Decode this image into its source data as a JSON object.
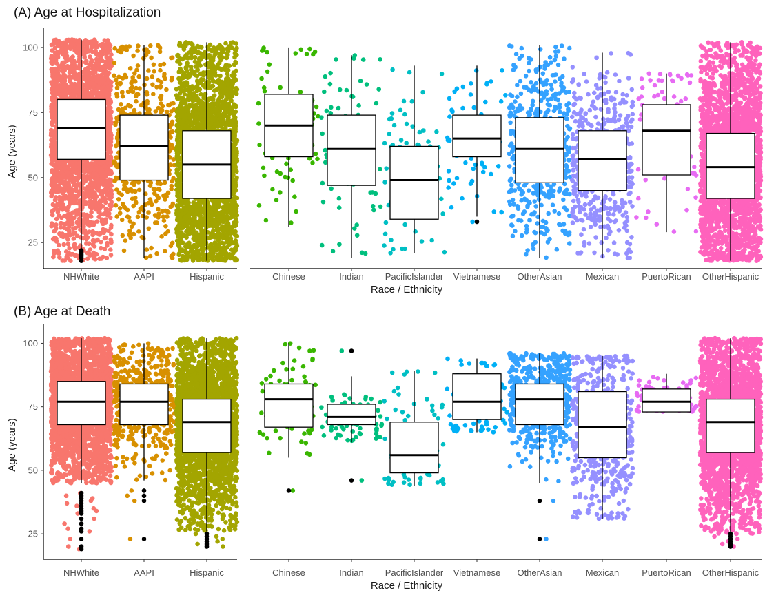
{
  "chart_data": [
    {
      "type": "boxplot",
      "title": "(A) Age at Hospitalization",
      "xlabel": "Race / Ethnicity",
      "ylabel": "Age (years)",
      "ylim": [
        15,
        105
      ],
      "yticks": [
        25,
        50,
        75,
        100
      ],
      "grid": false,
      "panels": [
        {
          "categories": [
            "NHWhite",
            "AAPI",
            "Hispanic"
          ]
        },
        {
          "categories": [
            "Chinese",
            "Indian",
            "PacificIslander",
            "Vietnamese",
            "OtherAsian",
            "Mexican",
            "PuertoRican",
            "OtherHispanic"
          ]
        }
      ],
      "series": [
        {
          "name": "NHWhite",
          "color": "#F8766D",
          "density": "dense",
          "min": 18,
          "q1": 57,
          "median": 69,
          "q3": 80,
          "max": 103,
          "outliers": [
            18,
            19,
            19.5,
            20,
            20.5,
            21,
            21.5,
            22
          ]
        },
        {
          "name": "AAPI",
          "color": "#D89000",
          "density": "medium",
          "min": 19,
          "q1": 49,
          "median": 62,
          "q3": 74,
          "max": 101,
          "outliers": []
        },
        {
          "name": "Hispanic",
          "color": "#A3A500",
          "density": "dense",
          "min": 18,
          "q1": 42,
          "median": 55,
          "q3": 68,
          "max": 102,
          "outliers": []
        },
        {
          "name": "Chinese",
          "color": "#39B600",
          "density": "sparse",
          "min": 31,
          "q1": 58,
          "median": 70,
          "q3": 82,
          "max": 100,
          "outliers": []
        },
        {
          "name": "Indian",
          "color": "#00BF7D",
          "density": "sparse",
          "min": 19,
          "q1": 47,
          "median": 61,
          "q3": 74,
          "max": 97,
          "outliers": []
        },
        {
          "name": "PacificIslander",
          "color": "#00BFC4",
          "density": "sparse",
          "min": 21,
          "q1": 34,
          "median": 49,
          "q3": 62,
          "max": 93,
          "outliers": []
        },
        {
          "name": "Vietnamese",
          "color": "#00B0F6",
          "density": "sparse",
          "min": 35,
          "q1": 58,
          "median": 65,
          "q3": 74,
          "max": 93,
          "outliers": [
            33
          ]
        },
        {
          "name": "OtherAsian",
          "color": "#35A2FF",
          "density": "medium",
          "min": 19,
          "q1": 48,
          "median": 61,
          "q3": 73,
          "max": 101,
          "outliers": []
        },
        {
          "name": "Mexican",
          "color": "#9590FF",
          "density": "medium",
          "min": 19,
          "q1": 45,
          "median": 57,
          "q3": 68,
          "max": 98,
          "outliers": []
        },
        {
          "name": "PuertoRican",
          "color": "#E76BF3",
          "density": "sparse",
          "min": 29,
          "q1": 51,
          "median": 68,
          "q3": 78,
          "max": 90,
          "outliers": []
        },
        {
          "name": "OtherHispanic",
          "color": "#FF62BC",
          "density": "dense",
          "min": 18,
          "q1": 42,
          "median": 54,
          "q3": 67,
          "max": 102,
          "outliers": []
        }
      ]
    },
    {
      "type": "boxplot",
      "title": "(B) Age at Death",
      "xlabel": "Race / Ethnicity",
      "ylabel": "Age (years)",
      "ylim": [
        15,
        105
      ],
      "yticks": [
        25,
        50,
        75,
        100
      ],
      "grid": false,
      "panels": [
        {
          "categories": [
            "NHWhite",
            "AAPI",
            "Hispanic"
          ]
        },
        {
          "categories": [
            "Chinese",
            "Indian",
            "PacificIslander",
            "Vietnamese",
            "OtherAsian",
            "Mexican",
            "PuertoRican",
            "OtherHispanic"
          ]
        }
      ],
      "series": [
        {
          "name": "NHWhite",
          "color": "#F8766D",
          "density": "dense",
          "min": 45,
          "q1": 68,
          "median": 77,
          "q3": 85,
          "max": 102,
          "outliers": [
            19,
            20,
            23,
            26,
            27,
            29,
            31,
            33,
            34,
            35,
            36,
            37,
            38,
            39,
            40,
            41
          ]
        },
        {
          "name": "AAPI",
          "color": "#D89000",
          "density": "medium",
          "min": 46,
          "q1": 68,
          "median": 77,
          "q3": 84,
          "max": 100,
          "outliers": [
            23,
            38,
            40,
            42
          ]
        },
        {
          "name": "Hispanic",
          "color": "#A3A500",
          "density": "dense",
          "min": 26,
          "q1": 57,
          "median": 69,
          "q3": 78,
          "max": 102,
          "outliers": [
            20,
            21,
            22,
            23,
            24,
            25
          ]
        },
        {
          "name": "Chinese",
          "color": "#39B600",
          "density": "sparse",
          "min": 55,
          "q1": 67,
          "median": 78,
          "q3": 84,
          "max": 100,
          "outliers": [
            42
          ]
        },
        {
          "name": "Indian",
          "color": "#00BF7D",
          "density": "sparse",
          "min": 61,
          "q1": 68,
          "median": 71,
          "q3": 76,
          "max": 87,
          "outliers": [
            46,
            97
          ]
        },
        {
          "name": "PacificIslander",
          "color": "#00BFC4",
          "density": "sparse",
          "min": 44,
          "q1": 49,
          "median": 56,
          "q3": 69,
          "max": 89,
          "outliers": []
        },
        {
          "name": "Vietnamese",
          "color": "#00B0F6",
          "density": "sparse",
          "min": 65,
          "q1": 70,
          "median": 77,
          "q3": 88,
          "max": 94,
          "outliers": []
        },
        {
          "name": "OtherAsian",
          "color": "#35A2FF",
          "density": "medium",
          "min": 45,
          "q1": 68,
          "median": 78,
          "q3": 84,
          "max": 96,
          "outliers": [
            23,
            38
          ]
        },
        {
          "name": "Mexican",
          "color": "#9590FF",
          "density": "medium",
          "min": 31,
          "q1": 55,
          "median": 67,
          "q3": 81,
          "max": 95,
          "outliers": []
        },
        {
          "name": "PuertoRican",
          "color": "#E76BF3",
          "density": "sparse",
          "min": 73,
          "q1": 73,
          "median": 77,
          "q3": 82,
          "max": 88,
          "outliers": []
        },
        {
          "name": "OtherHispanic",
          "color": "#FF62BC",
          "density": "dense",
          "min": 25,
          "q1": 57,
          "median": 69,
          "q3": 78,
          "max": 102,
          "outliers": [
            20,
            21,
            22,
            23,
            24,
            25
          ]
        }
      ]
    }
  ]
}
